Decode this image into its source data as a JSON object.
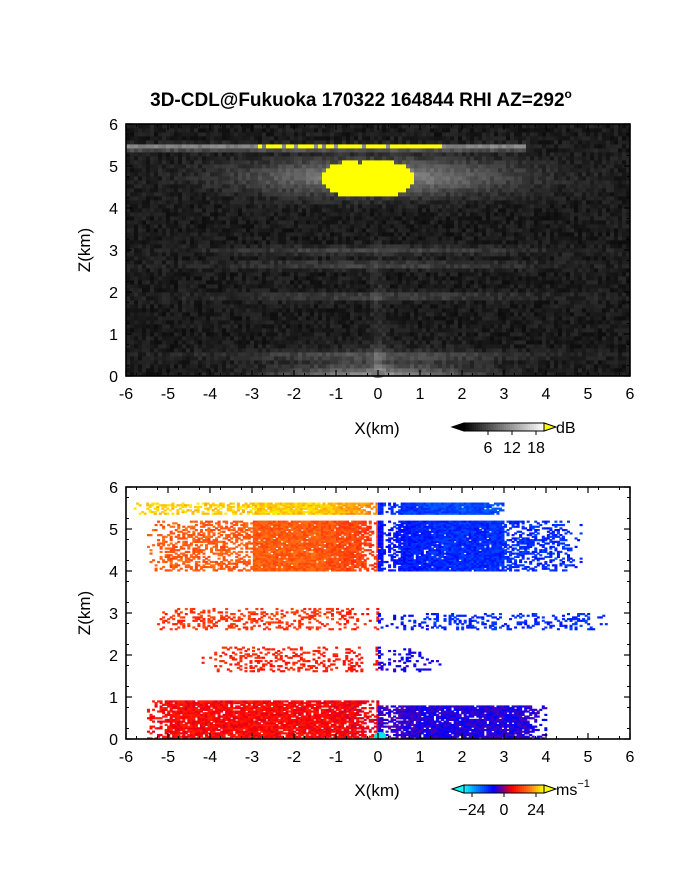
{
  "figure_title": "3D-CDL@Fukuoka 170322 164844 RHI AZ=292",
  "title_degree_symbol": "o",
  "chart_data": [
    {
      "type": "heatmap",
      "quantity": "backscatter intensity",
      "xlabel": "X(km)",
      "ylabel": "Z(km)",
      "xlim": [
        -6,
        6
      ],
      "ylim": [
        0,
        6
      ],
      "xticks": [
        "-6",
        "-5",
        "-4",
        "-3",
        "-2",
        "-1",
        "0",
        "1",
        "2",
        "3",
        "4",
        "5",
        "6"
      ],
      "yticks": [
        "0",
        "1",
        "2",
        "3",
        "4",
        "5",
        "6"
      ],
      "colormap": "grayscale, saturating yellow",
      "saturation_color": "#ffff00",
      "colorbar": {
        "unit": "dB",
        "ticks": [
          "6",
          "12",
          "18"
        ],
        "range": [
          0,
          20
        ]
      },
      "features": [
        {
          "kind": "thin-layer",
          "z_km": 5.45,
          "x_range": [
            -6,
            3.5
          ]
        },
        {
          "kind": "saturated-cloud",
          "z_range": [
            4.1,
            5.4
          ],
          "x_range": [
            -1.7,
            1.3
          ]
        },
        {
          "kind": "bright-band",
          "z_km": 4.75,
          "x_range": [
            -4.5,
            4.5
          ]
        },
        {
          "kind": "weak-layer",
          "z_km": 3.0,
          "x_range": [
            -5,
            4
          ]
        },
        {
          "kind": "weak-layer",
          "z_km": 2.65,
          "x_range": [
            -5,
            4
          ]
        },
        {
          "kind": "weak-layer",
          "z_km": 1.9,
          "x_range": [
            -4,
            4
          ]
        },
        {
          "kind": "weak-layer",
          "z_km": 0.5,
          "x_range": [
            -5,
            5
          ]
        },
        {
          "kind": "near-field-fan",
          "z_range": [
            0,
            0.6
          ],
          "x_range": [
            -4,
            4
          ]
        }
      ]
    },
    {
      "type": "heatmap",
      "quantity": "Doppler velocity",
      "xlabel": "X(km)",
      "ylabel": "Z(km)",
      "xlim": [
        -6,
        6
      ],
      "ylim": [
        0,
        6
      ],
      "xticks": [
        "-6",
        "-5",
        "-4",
        "-3",
        "-2",
        "-1",
        "0",
        "1",
        "2",
        "3",
        "4",
        "5",
        "6"
      ],
      "yticks": [
        "0",
        "1",
        "2",
        "3",
        "4",
        "5",
        "6"
      ],
      "colormap": "cyan-blue-red-orange-yellow",
      "colorbar": {
        "unit": "ms",
        "unit_exponent": "−1",
        "ticks": [
          "−24",
          "0",
          "24"
        ],
        "range": [
          -30,
          30
        ]
      },
      "features": [
        {
          "kind": "layer",
          "z_range": [
            5.35,
            5.6
          ],
          "x_range": [
            -6,
            0
          ],
          "velocity_ms": 26
        },
        {
          "kind": "layer",
          "z_range": [
            5.35,
            5.6
          ],
          "x_range": [
            0,
            3.2
          ],
          "velocity_ms": -15
        },
        {
          "kind": "layer",
          "z_range": [
            4.0,
            5.2
          ],
          "x_range": [
            -5.5,
            0
          ],
          "velocity_ms": 16
        },
        {
          "kind": "layer",
          "z_range": [
            4.0,
            5.2
          ],
          "x_range": [
            0,
            4.8
          ],
          "velocity_ms": -12
        },
        {
          "kind": "sparse-layer",
          "z_range": [
            2.6,
            3.1
          ],
          "x_range": [
            -5.5,
            0
          ],
          "velocity_ms": 12
        },
        {
          "kind": "sparse-layer",
          "z_range": [
            2.6,
            3.0
          ],
          "x_range": [
            0,
            5.5
          ],
          "velocity_ms": -12
        },
        {
          "kind": "sparse-layer",
          "z_range": [
            1.6,
            2.2
          ],
          "x_range": [
            -4.2,
            0
          ],
          "velocity_ms": 10
        },
        {
          "kind": "sparse-layer",
          "z_range": [
            1.6,
            2.2
          ],
          "x_range": [
            0,
            1.5
          ],
          "velocity_ms": -8
        },
        {
          "kind": "dense-layer",
          "z_range": [
            0,
            0.9
          ],
          "x_range": [
            -5.5,
            0
          ],
          "velocity_ms": 7
        },
        {
          "kind": "dense-layer",
          "z_range": [
            0,
            0.8
          ],
          "x_range": [
            0,
            4
          ],
          "velocity_ms": -6
        }
      ]
    }
  ]
}
